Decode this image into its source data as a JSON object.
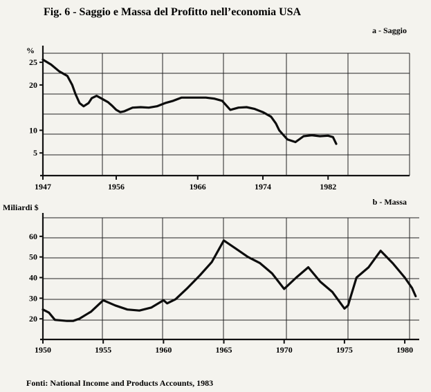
{
  "figure": {
    "title": "Fig. 6 - Saggio e Massa del Profitto nell’economia USA",
    "source": "Fonti: National Income and Products Accounts, 1983"
  },
  "chart_data": [
    {
      "type": "line",
      "subtitle": "a - Saggio",
      "ylabel": "%",
      "xlim": [
        1947,
        1992
      ],
      "ylim": [
        0,
        27
      ],
      "x_ticks": [
        1947,
        1956,
        1966,
        1974,
        1982
      ],
      "y_ticks": [
        5,
        10,
        20,
        25
      ],
      "grid": true,
      "series": [
        {
          "x": [
            1947,
            1948,
            1949,
            1950,
            1950.6,
            1951,
            1951.5,
            1952,
            1952.6,
            1953,
            1953.6,
            1954,
            1955,
            1955.5,
            1956,
            1956.5,
            1957,
            1958,
            1959,
            1960,
            1961,
            1962,
            1963,
            1964,
            1965,
            1966,
            1967,
            1968,
            1969,
            1970,
            1971,
            1972,
            1973,
            1974,
            1975,
            1975.6,
            1976,
            1976.5,
            1977,
            1978,
            1979,
            1980,
            1981,
            1982,
            1982.6,
            1983
          ],
          "y": [
            25.6,
            24.5,
            23,
            22,
            20,
            18,
            16,
            15.3,
            16,
            17.1,
            17.6,
            17.2,
            16.2,
            15.4,
            14.5,
            14.0,
            14.2,
            15.0,
            15.1,
            15.0,
            15.3,
            16.0,
            16.5,
            17.2,
            17.2,
            17.2,
            17.2,
            17.0,
            16.5,
            14.5,
            15.0,
            15.1,
            14.7,
            14.0,
            13.0,
            11.5,
            10.0,
            9.0,
            8.0,
            7.4,
            8.7,
            8.9,
            8.7,
            8.8,
            8.5,
            7.0
          ]
        }
      ]
    },
    {
      "type": "line",
      "subtitle": "b - Massa",
      "ylabel": "Miliardi $",
      "xlim": [
        1950,
        1981.2
      ],
      "ylim": [
        10,
        69
      ],
      "x_ticks": [
        1950,
        1955,
        1960,
        1965,
        1970,
        1975,
        1980
      ],
      "y_ticks": [
        20,
        30,
        40,
        50,
        60
      ],
      "grid": true,
      "series": [
        {
          "x": [
            1950,
            1950.5,
            1951,
            1952,
            1952.5,
            1953,
            1954,
            1955,
            1956,
            1957,
            1958,
            1959,
            1960,
            1960.3,
            1961,
            1962,
            1963,
            1964,
            1965,
            1966,
            1967,
            1968,
            1969,
            1970,
            1971,
            1972,
            1973,
            1974,
            1975,
            1975.3,
            1976,
            1977,
            1978,
            1979,
            1980,
            1980.6,
            1980.9
          ],
          "y": [
            24.5,
            23.0,
            19.5,
            19.0,
            19.0,
            20.0,
            23.5,
            29.0,
            26.5,
            24.5,
            24.0,
            25.5,
            29.0,
            27.5,
            29.5,
            35.0,
            41.0,
            47.5,
            58.0,
            54.0,
            50.0,
            47.0,
            42.0,
            34.5,
            40.0,
            45.0,
            38.0,
            33.0,
            25.0,
            26.5,
            40.0,
            45.0,
            53.0,
            47.0,
            40.0,
            35.0,
            31.0
          ]
        }
      ]
    }
  ]
}
